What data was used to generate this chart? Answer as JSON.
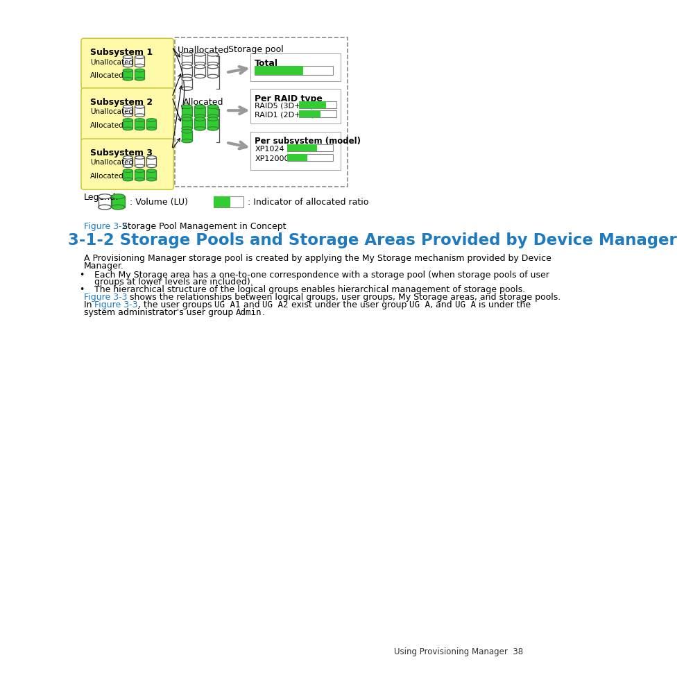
{
  "bg_color": "#ffffff",
  "figure_caption_color": "#1F7BC0",
  "section_title_color": "#1F7BC0",
  "section_title": "3-1-2 Storage Pools and Storage Areas Provided by Device Manager",
  "body_text_line1": "A Provisioning Manager storage pool is created by applying the My Storage mechanism provided by Device",
  "body_text_line2": "Manager.",
  "bullet1_line1": "Each My Storage area has a one-to-one correspondence with a storage pool (when storage pools of user",
  "bullet1_line2": "groups at lower levels are included).",
  "bullet2": "The hierarchical structure of the logical groups enables hierarchical management of storage pools.",
  "ref1_line": "Figure 3-3 shows the relationships between logical groups, user groups, My Storage areas, and storage pools.",
  "ref2_line1_plain1": "In ",
  "ref2_line1_ref": "Figure 3-3",
  "ref2_line1_plain2": ", the user groups ",
  "ref2_line1_code1": "UG A1",
  "ref2_line1_plain3": " and ",
  "ref2_line1_code2": "UG A2",
  "ref2_line1_plain4": " exist under the user group ",
  "ref2_line1_code3": "UG A",
  "ref2_line1_plain5": ", and ",
  "ref2_line1_code4": "UG A",
  "ref2_line1_plain6": " is under the",
  "ref2_line2_plain1": "system administrator's user group ",
  "ref2_line2_code1": "Admin",
  "ref2_line2_plain2": ".",
  "footer_text": "Using Provisioning Manager  38",
  "yellow_fill": "#FFFAAA",
  "yellow_border": "#CCCC44",
  "green_fill": "#33CC33",
  "dashed_color": "#888888",
  "arrow_color": "#999999",
  "box_border": "#AAAAAA"
}
